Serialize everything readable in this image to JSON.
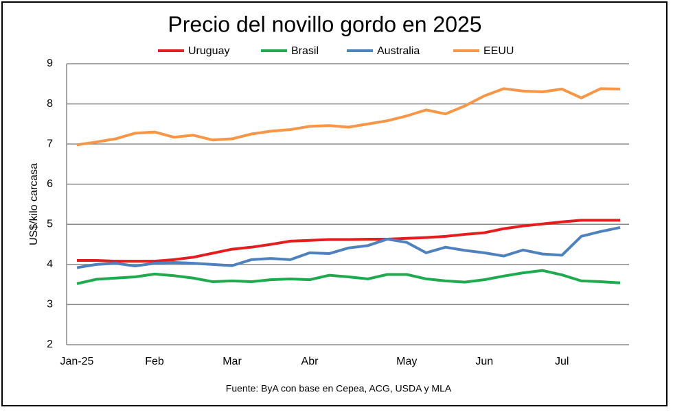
{
  "chart_data": {
    "type": "line",
    "title": "Precio del novillo gordo en 2025",
    "y_label": "US$/kilo carcasa",
    "source": "Fuente: ByA con base en Cepea, ACG, USDA y MLA",
    "categories": [
      "Jan-25",
      null,
      null,
      null,
      "Feb",
      null,
      null,
      null,
      "Mar",
      null,
      null,
      null,
      "Abr",
      null,
      null,
      null,
      null,
      "May",
      null,
      null,
      null,
      "Jun",
      null,
      null,
      null,
      "Jul",
      null,
      null,
      null
    ],
    "series": [
      {
        "name": "Uruguay",
        "color": "#e41e1e",
        "values": [
          4.1,
          4.1,
          4.08,
          4.08,
          4.08,
          4.12,
          4.18,
          4.28,
          4.38,
          4.43,
          4.5,
          4.58,
          4.6,
          4.62,
          4.62,
          4.63,
          4.63,
          4.65,
          4.67,
          4.7,
          4.75,
          4.79,
          4.89,
          4.96,
          5.01,
          5.06,
          5.1,
          5.1,
          5.1
        ]
      },
      {
        "name": "Brasil",
        "color": "#1faa4f",
        "values": [
          3.52,
          3.63,
          3.66,
          3.69,
          3.76,
          3.72,
          3.66,
          3.57,
          3.59,
          3.57,
          3.62,
          3.64,
          3.62,
          3.73,
          3.69,
          3.64,
          3.75,
          3.75,
          3.64,
          3.59,
          3.56,
          3.62,
          3.71,
          3.79,
          3.85,
          3.74,
          3.59,
          3.57,
          3.54
        ]
      },
      {
        "name": "Australia",
        "color": "#4f81bd",
        "values": [
          3.92,
          4.0,
          4.03,
          3.96,
          4.03,
          4.05,
          4.03,
          4.0,
          3.97,
          4.12,
          4.15,
          4.12,
          4.29,
          4.27,
          4.41,
          4.47,
          4.63,
          4.55,
          4.29,
          4.43,
          4.35,
          4.29,
          4.21,
          4.36,
          4.26,
          4.23,
          4.7,
          4.82,
          4.92
        ]
      },
      {
        "name": "EEUU",
        "color": "#f79646",
        "values": [
          6.98,
          7.05,
          7.13,
          7.27,
          7.3,
          7.17,
          7.22,
          7.1,
          7.13,
          7.25,
          7.32,
          7.36,
          7.44,
          7.46,
          7.42,
          7.5,
          7.58,
          7.7,
          7.85,
          7.75,
          7.95,
          8.2,
          8.38,
          8.32,
          8.3,
          8.37,
          8.15,
          8.38,
          8.37
        ]
      }
    ],
    "ylim": [
      2,
      9
    ],
    "yticks": [
      2,
      3,
      4,
      5,
      6,
      7,
      8,
      9
    ],
    "grid": true
  }
}
